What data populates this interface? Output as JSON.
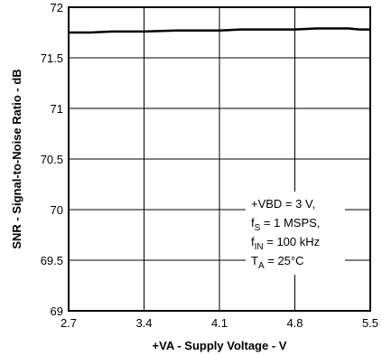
{
  "chart_data": {
    "type": "line",
    "title": "",
    "xlabel": "+VA - Supply Voltage - V",
    "ylabel": "SNR - Signal-to-Noise Ratio - dB",
    "xlim": [
      2.7,
      5.5
    ],
    "ylim": [
      69,
      72
    ],
    "x_ticks": [
      "2.7",
      "3.4",
      "4.1",
      "4.8",
      "5.5"
    ],
    "y_ticks": [
      "69",
      "69.5",
      "70",
      "70.5",
      "71",
      "71.5",
      "72"
    ],
    "grid": true,
    "series": [
      {
        "x": [
          2.7,
          2.9,
          3.1,
          3.4,
          3.7,
          3.9,
          4.1,
          4.3,
          4.5,
          4.8,
          5.0,
          5.2,
          5.3,
          5.4,
          5.5
        ],
        "y": [
          71.75,
          71.75,
          71.76,
          71.76,
          71.77,
          71.77,
          71.77,
          71.78,
          71.78,
          71.78,
          71.79,
          71.79,
          71.79,
          71.78,
          71.78
        ],
        "color": "#000000"
      }
    ],
    "annotation": {
      "lines": [
        {
          "main": "+VBD = 3 V,",
          "sub": "",
          "rest": ""
        },
        {
          "main": "f",
          "sub": "S",
          "rest": " = 1 MSPS,"
        },
        {
          "main": "f",
          "sub": "IN",
          "rest": " = 100 kHz"
        },
        {
          "main": "T",
          "sub": "A",
          "rest": " = 25°C"
        }
      ]
    }
  }
}
